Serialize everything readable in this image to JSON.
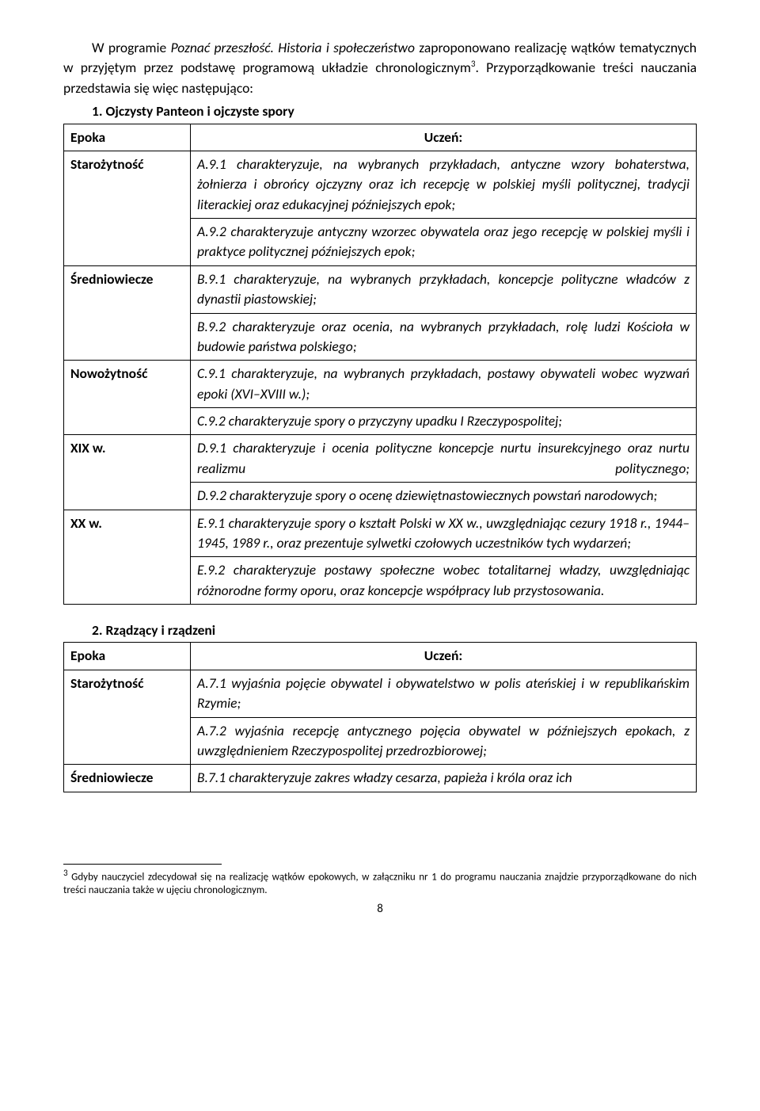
{
  "intro": {
    "line1_a": "W programie ",
    "line1_b": "Poznać przeszłość. Historia i społeczeństwo",
    "line1_c": " zaproponowano realizację wątków tematycznych w przyjętym przez podstawę programową układzie chronologicznym",
    "sup": "3",
    "line1_d": ". Przyporządkowanie treści nauczania przedstawia się więc następująco:"
  },
  "section1": {
    "num": "1.",
    "title": "Ojczysty Panteon i ojczyste spory",
    "col1": "Epoka",
    "col2": "Uczeń:",
    "rows": [
      {
        "era": "Starożytność",
        "cells": [
          "A.9.1 charakteryzuje, na wybranych przykładach, antyczne wzory bohaterstwa, żołnierza i obrońcy ojczyzny oraz ich recepcję w polskiej myśli politycznej, tradycji literackiej oraz edukacyjnej późniejszych epok;",
          "A.9.2 charakteryzuje antyczny wzorzec obywatela oraz jego recepcję w polskiej myśli i praktyce politycznej późniejszych epok;"
        ]
      },
      {
        "era": "Średniowiecze",
        "cells": [
          "B.9.1 charakteryzuje, na wybranych przykładach, koncepcje polityczne władców z dynastii piastowskiej;",
          "B.9.2 charakteryzuje oraz ocenia, na wybranych przykładach, rolę ludzi Kościoła w budowie państwa polskiego;"
        ]
      },
      {
        "era": "Nowożytność",
        "cells": [
          "C.9.1 charakteryzuje, na wybranych przykładach, postawy obywateli wobec wyzwań epoki (XVI–XVIII w.);",
          "C.9.2 charakteryzuje spory o przyczyny upadku I Rzeczypospolitej;"
        ]
      },
      {
        "era": "XIX w.",
        "cells": [
          "D.9.1 charakteryzuje i ocenia polityczne koncepcje nurtu insurekcyjnego oraz nurtu realizmu politycznego;",
          "D.9.2 charakteryzuje spory o ocenę dziewiętnastowiecznych powstań narodowych;"
        ]
      },
      {
        "era": "XX w.",
        "cells": [
          "E.9.1 charakteryzuje spory o kształt Polski w XX w., uwzględniając cezury 1918 r., 1944–1945, 1989 r., oraz prezentuje sylwetki czołowych uczestników tych wydarzeń;",
          "E.9.2 charakteryzuje postawy społeczne wobec totalitarnej władzy, uwzględniając różnorodne formy oporu, oraz koncepcje współpracy lub przystosowania."
        ]
      }
    ]
  },
  "section2": {
    "num": "2.",
    "title": "Rządzący i rządzeni",
    "col1": "Epoka",
    "col2": "Uczeń:",
    "rows": [
      {
        "era": "Starożytność",
        "cells": [
          "A.7.1 wyjaśnia pojęcie obywatel i obywatelstwo w polis ateńskiej i w republikańskim Rzymie;",
          "A.7.2 wyjaśnia recepcję antycznego pojęcia obywatel w późniejszych epokach, z uwzględnieniem Rzeczypospolitej przedrozbiorowej;"
        ]
      },
      {
        "era": "Średniowiecze",
        "cells": [
          "B.7.1 charakteryzuje zakres władzy cesarza, papieża i króla oraz ich"
        ]
      }
    ]
  },
  "footnote": {
    "sup": "3",
    "text": " Gdyby nauczyciel zdecydował się na realizację wątków epokowych, w załączniku nr 1 do programu nauczania znajdzie przyporządkowane do nich treści nauczania także w ujęciu chronologicznym."
  },
  "pagenum": "8"
}
